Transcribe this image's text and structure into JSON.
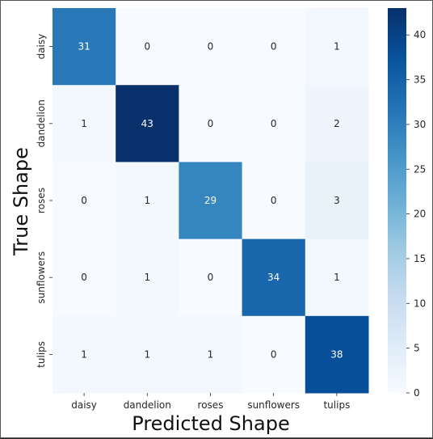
{
  "chart_data": {
    "type": "heatmap",
    "title": "",
    "xlabel": "Predicted Shape",
    "ylabel": "True Shape",
    "x_categories": [
      "daisy",
      "dandelion",
      "roses",
      "sunflowers",
      "tulips"
    ],
    "y_categories": [
      "daisy",
      "dandelion",
      "roses",
      "sunflowers",
      "tulips"
    ],
    "matrix": [
      [
        31,
        0,
        0,
        0,
        1
      ],
      [
        1,
        43,
        0,
        0,
        2
      ],
      [
        0,
        1,
        29,
        0,
        3
      ],
      [
        0,
        1,
        0,
        34,
        1
      ],
      [
        1,
        1,
        1,
        0,
        38
      ]
    ],
    "colormap": "Blues",
    "colorbar": {
      "min": 0,
      "max": 43,
      "ticks": [
        0,
        5,
        10,
        15,
        20,
        25,
        30,
        35,
        40
      ]
    },
    "grid": false
  }
}
